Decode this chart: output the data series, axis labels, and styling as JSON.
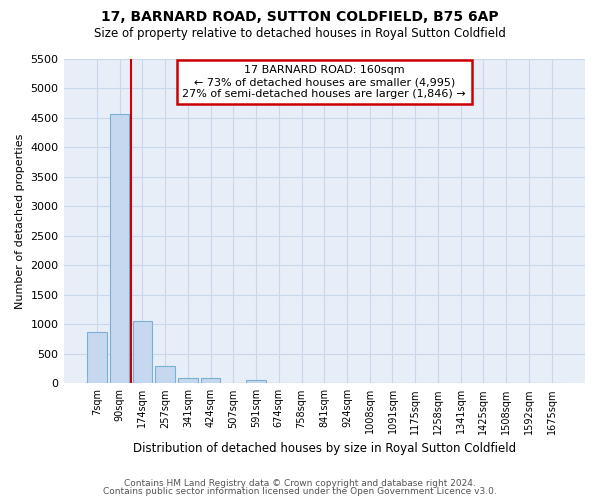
{
  "title1": "17, BARNARD ROAD, SUTTON COLDFIELD, B75 6AP",
  "title2": "Size of property relative to detached houses in Royal Sutton Coldfield",
  "xlabel": "Distribution of detached houses by size in Royal Sutton Coldfield",
  "ylabel": "Number of detached properties",
  "footer1": "Contains HM Land Registry data © Crown copyright and database right 2024.",
  "footer2": "Contains public sector information licensed under the Open Government Licence v3.0.",
  "annotation_title": "17 BARNARD ROAD: 160sqm",
  "annotation_line1": "← 73% of detached houses are smaller (4,995)",
  "annotation_line2": "27% of semi-detached houses are larger (1,846) →",
  "bar_color": "#c5d8f0",
  "bar_edge_color": "#7bafd4",
  "vline_color": "#cc0000",
  "annotation_box_edge": "#cc0000",
  "annotation_bg": "#ffffff",
  "grid_color": "#c8d8ea",
  "background_color": "#ffffff",
  "plot_bg_color": "#e8eef8",
  "categories": [
    "7sqm",
    "90sqm",
    "174sqm",
    "257sqm",
    "341sqm",
    "424sqm",
    "507sqm",
    "591sqm",
    "674sqm",
    "758sqm",
    "841sqm",
    "924sqm",
    "1008sqm",
    "1091sqm",
    "1175sqm",
    "1258sqm",
    "1341sqm",
    "1425sqm",
    "1508sqm",
    "1592sqm",
    "1675sqm"
  ],
  "values": [
    870,
    4560,
    1060,
    295,
    90,
    90,
    0,
    50,
    0,
    0,
    0,
    0,
    0,
    0,
    0,
    0,
    0,
    0,
    0,
    0,
    0
  ],
  "vline_x": 1.5,
  "ylim": [
    0,
    5500
  ],
  "yticks": [
    0,
    500,
    1000,
    1500,
    2000,
    2500,
    3000,
    3500,
    4000,
    4500,
    5000,
    5500
  ]
}
